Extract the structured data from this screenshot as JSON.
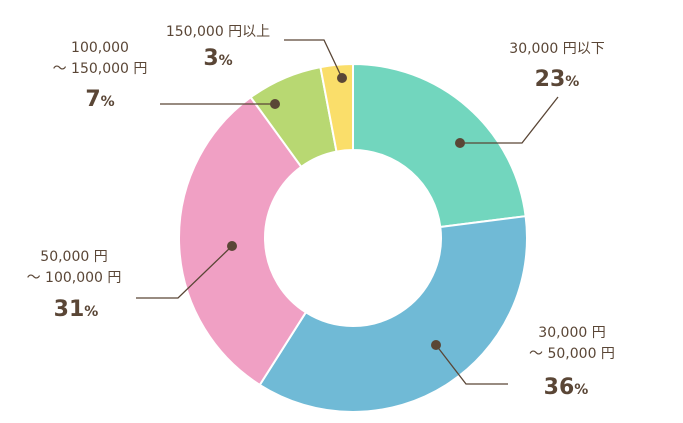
{
  "chart_data": {
    "type": "pie",
    "donut": true,
    "title": "",
    "slices": [
      {
        "label_lines": [
          "30,000 円以下"
        ],
        "value": 23,
        "pct_text": "23",
        "pct_unit": "%",
        "color": "#72d6be"
      },
      {
        "label_lines": [
          "30,000 円",
          "～ 50,000 円"
        ],
        "value": 36,
        "pct_text": "36",
        "pct_unit": "%",
        "color": "#70bad6"
      },
      {
        "label_lines": [
          "50,000 円",
          "～ 100,000 円"
        ],
        "value": 31,
        "pct_text": "31",
        "pct_unit": "%",
        "color": "#f0a0c4"
      },
      {
        "label_lines": [
          "100,000",
          "～ 150,000 円"
        ],
        "value": 7,
        "pct_text": "7",
        "pct_unit": "%",
        "color": "#b8d872"
      },
      {
        "label_lines": [
          "150,000 円以上"
        ],
        "value": 3,
        "pct_text": "3",
        "pct_unit": "%",
        "color": "#fade6a"
      }
    ],
    "leader_color": "#5a4636"
  }
}
